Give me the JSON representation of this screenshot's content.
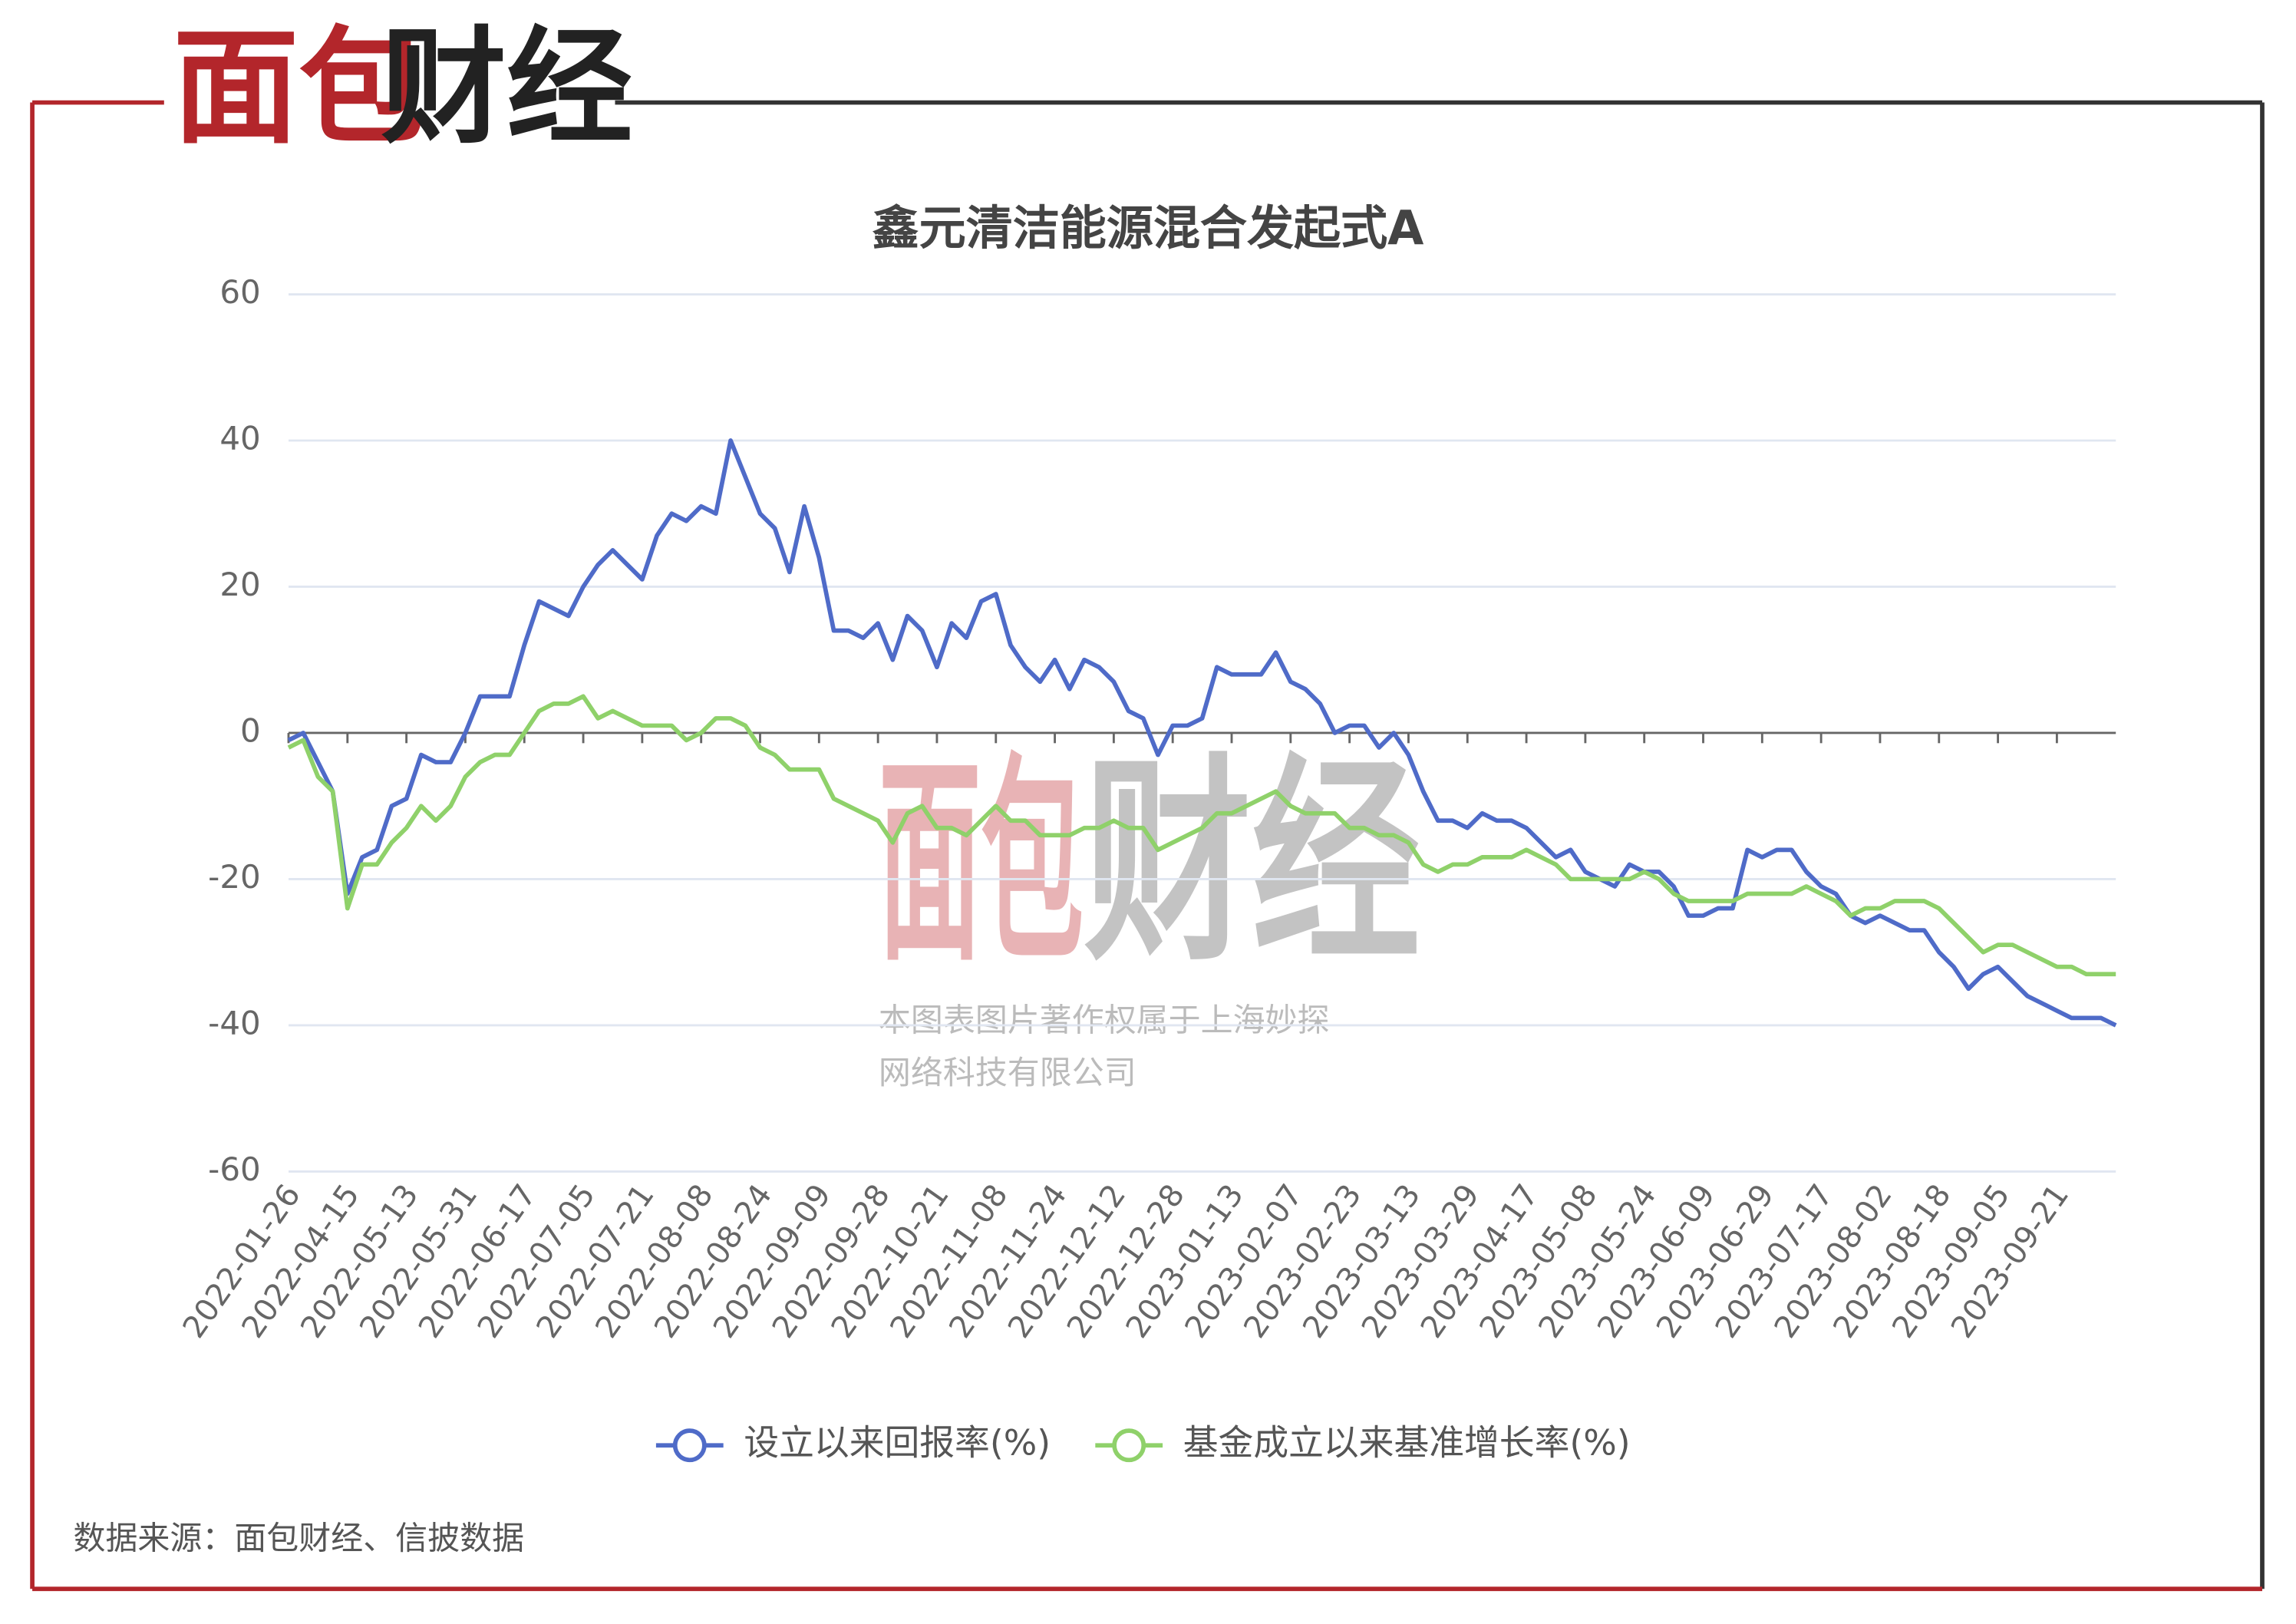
{
  "logo": [
    "面包",
    "财经"
  ],
  "watermark": [
    "本图表图片著作权属于上海妙探",
    "网络科技有限公司"
  ],
  "source": "数据来源：面包财经、信披数据",
  "chart_data": {
    "type": "line",
    "title": "鑫元清洁能源混合发起式A",
    "categories": [
      "2022-01-26",
      null,
      null,
      null,
      "2022-04-15",
      null,
      null,
      null,
      "2022-05-13",
      null,
      null,
      null,
      "2022-05-31",
      null,
      null,
      null,
      "2022-06-17",
      null,
      null,
      null,
      "2022-07-05",
      null,
      null,
      null,
      "2022-07-21",
      null,
      null,
      null,
      "2022-08-08",
      null,
      null,
      null,
      "2022-08-24",
      null,
      null,
      null,
      "2022-09-09",
      null,
      null,
      null,
      "2022-09-28",
      null,
      null,
      null,
      "2022-10-21",
      null,
      null,
      null,
      "2022-11-08",
      null,
      null,
      null,
      "2022-11-24",
      null,
      null,
      null,
      "2022-12-12",
      null,
      null,
      null,
      "2022-12-28",
      null,
      null,
      null,
      "2023-01-13",
      null,
      null,
      null,
      "2023-02-07",
      null,
      null,
      null,
      "2023-02-23",
      null,
      null,
      null,
      "2023-03-13",
      null,
      null,
      null,
      "2023-03-29",
      null,
      null,
      null,
      "2023-04-17",
      null,
      null,
      null,
      "2023-05-08",
      null,
      null,
      null,
      "2023-05-24",
      null,
      null,
      null,
      "2023-06-09",
      null,
      null,
      null,
      "2023-06-29",
      null,
      null,
      null,
      "2023-07-17",
      null,
      null,
      null,
      "2023-08-02",
      null,
      null,
      null,
      "2023-08-18",
      null,
      null,
      null,
      "2023-09-05",
      null,
      null,
      null,
      "2023-09-21",
      null,
      null,
      null,
      null
    ],
    "series": [
      {
        "name": "设立以来回报率(%)",
        "color": "#4f6bc8",
        "values": [
          -1,
          0,
          -4,
          -8,
          -22,
          -17,
          -16,
          -10,
          -9,
          -3,
          -4,
          -4,
          0,
          5,
          5,
          5,
          12,
          18,
          17,
          16,
          20,
          23,
          25,
          23,
          21,
          27,
          30,
          29,
          31,
          30,
          40,
          35,
          30,
          28,
          22,
          31,
          24,
          14,
          14,
          13,
          15,
          10,
          16,
          14,
          9,
          15,
          13,
          18,
          19,
          12,
          9,
          7,
          10,
          6,
          10,
          9,
          7,
          3,
          2,
          -3,
          1,
          1,
          2,
          9,
          8,
          8,
          8,
          11,
          7,
          6,
          4,
          0,
          1,
          1,
          -2,
          0,
          -3,
          -8,
          -12,
          -12,
          -13,
          -11,
          -12,
          -12,
          -13,
          -15,
          -17,
          -16,
          -19,
          -20,
          -21,
          -18,
          -19,
          -19,
          -21,
          -25,
          -25,
          -24,
          -24,
          -16,
          -17,
          -16,
          -16,
          -19,
          -21,
          -22,
          -25,
          -26,
          -25,
          -26,
          -27,
          -27,
          -30,
          -32,
          -35,
          -33,
          -32,
          -34,
          -36,
          -37,
          -38,
          -39,
          -39,
          -39,
          -40
        ]
      },
      {
        "name": "基金成立以来基准增长率(%)",
        "color": "#8fd16a",
        "values": [
          -2,
          -1,
          -6,
          -8,
          -24,
          -18,
          -18,
          -15,
          -13,
          -10,
          -12,
          -10,
          -6,
          -4,
          -3,
          -3,
          0,
          3,
          4,
          4,
          5,
          2,
          3,
          2,
          1,
          1,
          1,
          -1,
          0,
          2,
          2,
          1,
          -2,
          -3,
          -5,
          -5,
          -5,
          -9,
          -10,
          -11,
          -12,
          -15,
          -11,
          -10,
          -13,
          -13,
          -14,
          -12,
          -10,
          -12,
          -12,
          -14,
          -14,
          -14,
          -13,
          -13,
          -12,
          -13,
          -13,
          -16,
          -15,
          -14,
          -13,
          -11,
          -11,
          -10,
          -9,
          -8,
          -10,
          -11,
          -11,
          -11,
          -13,
          -13,
          -14,
          -14,
          -15,
          -18,
          -19,
          -18,
          -18,
          -17,
          -17,
          -17,
          -16,
          -17,
          -18,
          -20,
          -20,
          -20,
          -20,
          -20,
          -19,
          -20,
          -22,
          -23,
          -23,
          -23,
          -23,
          -22,
          -22,
          -22,
          -22,
          -21,
          -22,
          -23,
          -25,
          -24,
          -24,
          -23,
          -23,
          -23,
          -24,
          -26,
          -28,
          -30,
          -29,
          -29,
          -30,
          -31,
          -32,
          -32,
          -33,
          -33,
          -33
        ]
      }
    ],
    "ylim": [
      -60,
      60
    ],
    "yticks": [
      -60,
      -40,
      -20,
      0,
      20,
      40,
      60
    ],
    "grid": true,
    "legend": "bottom"
  }
}
